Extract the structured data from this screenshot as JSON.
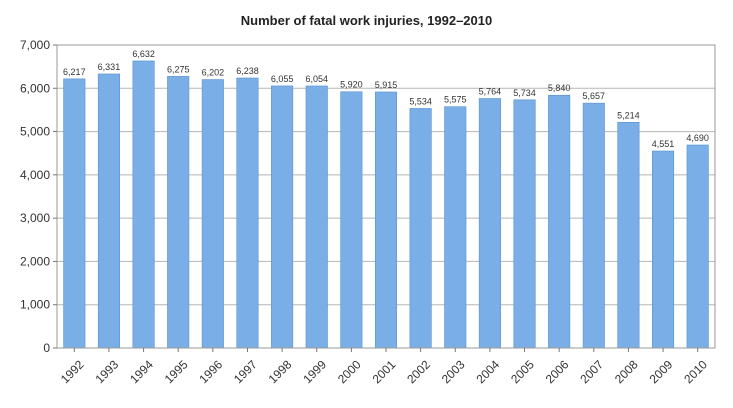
{
  "chart_data": {
    "type": "bar",
    "title": "Number of fatal work injuries, 1992–2010",
    "xlabel": "",
    "ylabel": "",
    "categories": [
      "1992",
      "1993",
      "1994",
      "1995",
      "1996",
      "1997",
      "1998",
      "1999",
      "2000",
      "2001",
      "2002",
      "2003",
      "2004",
      "2005",
      "2006",
      "2007",
      "2008",
      "2009",
      "2010"
    ],
    "values": [
      6217,
      6331,
      6632,
      6275,
      6202,
      6238,
      6055,
      6054,
      5920,
      5915,
      5534,
      5575,
      5764,
      5734,
      5840,
      5657,
      5214,
      4551,
      4690
    ],
    "data_labels": [
      "6,217",
      "6,331",
      "6,632",
      "6,275",
      "6,202",
      "6,238",
      "6,055",
      "6,054",
      "5,920",
      "5,915",
      "5,534",
      "5,575",
      "5,764",
      "5,734",
      "5,840",
      "5,657",
      "5,214",
      "4,551",
      "4,690"
    ],
    "ylim": [
      0,
      7000
    ],
    "yticks": [
      0,
      1000,
      2000,
      3000,
      4000,
      5000,
      6000,
      7000
    ],
    "ytick_labels": [
      "0",
      "1,000",
      "2,000",
      "3,000",
      "4,000",
      "5,000",
      "6,000",
      "7,000"
    ],
    "grid": true,
    "legend": "none",
    "bar_color": "#7aaee6",
    "bar_edge_color": "#5b92d0"
  }
}
